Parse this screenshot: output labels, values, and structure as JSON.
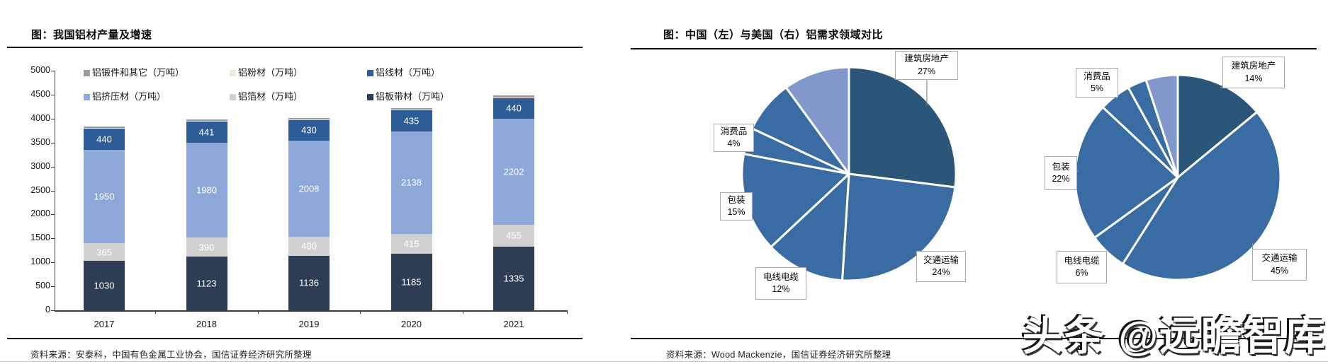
{
  "page": {
    "background": "#ffffff",
    "watermark_text": "头条 @远瞻智库"
  },
  "left_panel": {
    "title": "图：我国铝材产量及增速",
    "source": "资料来源：安泰科，中国有色金属工业协会，国信证券经济研究所整理"
  },
  "right_panel": {
    "title": "图：中国（左）与美国（右）铝需求领域对比",
    "source": "资料来源：Wood Mackenzie，国信证券经济研究所整理"
  },
  "chart_data": [
    {
      "type": "bar",
      "stacked": true,
      "title": "图：我国铝材产量及增速",
      "categories": [
        "2017",
        "2018",
        "2019",
        "2020",
        "2021"
      ],
      "series": [
        {
          "name": "铝板带材（万吨）",
          "color": "#2d3e54",
          "values": [
            1030,
            1123,
            1136,
            1185,
            1335
          ],
          "labeled": true
        },
        {
          "name": "铝箔材（万吨）",
          "color": "#d1d1d1",
          "values": [
            365,
            390,
            400,
            415,
            455
          ],
          "labeled": true
        },
        {
          "name": "铝挤压材（万吨）",
          "color": "#8fa8da",
          "values": [
            1950,
            1980,
            2008,
            2138,
            2202
          ],
          "labeled": true
        },
        {
          "name": "铝线材（万吨）",
          "color": "#2e5c97",
          "values": [
            440,
            441,
            430,
            435,
            440
          ],
          "labeled": true
        },
        {
          "name": "铝粉材（万吨）",
          "color": "#efe8e0",
          "values": [
            15,
            15,
            15,
            15,
            15
          ],
          "labeled": false
        },
        {
          "name": "铝锻件和其它（万吨）",
          "color": "#9c9c9c",
          "values": [
            30,
            30,
            30,
            30,
            30
          ],
          "labeled": false
        }
      ],
      "legend_order": [
        "铝锻件和其它（万吨）",
        "铝粉材（万吨）",
        "铝线材（万吨）",
        "铝挤压材（万吨）",
        "铝箔材（万吨）",
        "铝板带材（万吨）"
      ],
      "ylim": [
        0,
        5000
      ],
      "ytick_step": 500,
      "grid": false,
      "value_label_color": "#ffffff"
    },
    {
      "type": "pie",
      "region": "中国",
      "side": "left",
      "slices": [
        {
          "label": "建筑房地产",
          "pct": 27,
          "color": "#2b5679",
          "callout": true
        },
        {
          "label": "交通运输",
          "pct": 24,
          "color": "#3a6ca4",
          "callout": true
        },
        {
          "label": "电线电缆",
          "pct": 12,
          "color": "#3a6ca4",
          "callout": true
        },
        {
          "label": "包装",
          "pct": 15,
          "color": "#3a6ca4",
          "callout": true
        },
        {
          "label": "消费品",
          "pct": 4,
          "color": "#3a6ca4",
          "callout": true
        },
        {
          "label": "",
          "pct": 8,
          "color": "#3a6ca4",
          "callout": false
        },
        {
          "label": "",
          "pct": 10,
          "color": "#8297cb",
          "callout": false
        }
      ]
    },
    {
      "type": "pie",
      "region": "美国",
      "side": "right",
      "slices": [
        {
          "label": "建筑房地产",
          "pct": 14,
          "color": "#2b5679",
          "callout": true
        },
        {
          "label": "交通运输",
          "pct": 45,
          "color": "#3a6ca4",
          "callout": true
        },
        {
          "label": "电线电缆",
          "pct": 6,
          "color": "#3a6ca4",
          "callout": true
        },
        {
          "label": "包装",
          "pct": 22,
          "color": "#3a6ca4",
          "callout": true
        },
        {
          "label": "消费品",
          "pct": 5,
          "color": "#3a6ca4",
          "callout": true
        },
        {
          "label": "",
          "pct": 3,
          "color": "#3a6ca4",
          "callout": false
        },
        {
          "label": "",
          "pct": 5,
          "color": "#8297cb",
          "callout": false
        }
      ]
    }
  ]
}
